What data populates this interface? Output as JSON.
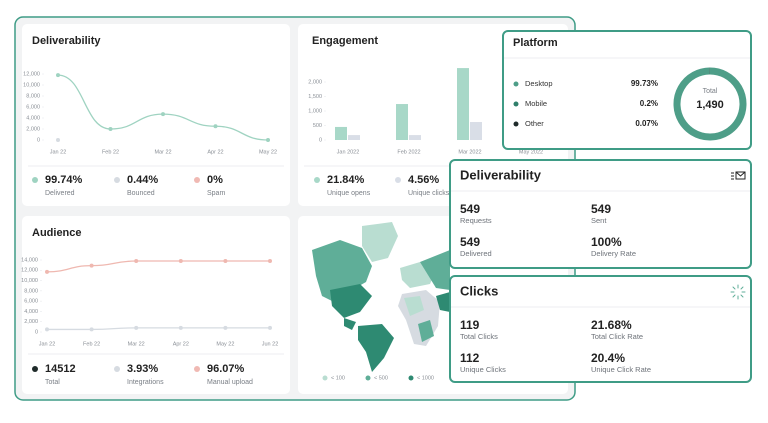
{
  "deliverability_chart": {
    "type": "line",
    "title": "Deliverability",
    "categories": [
      "Jan 22",
      "Feb 22",
      "Mar 22",
      "Apr 22",
      "May 22"
    ],
    "ylim": [
      0,
      12000
    ],
    "yticks": [
      0,
      {
        "value": 2000,
        "label": "2,000"
      },
      {
        "value": 4000,
        "label": "4,000"
      },
      {
        "value": 6000,
        "label": "6,000"
      },
      {
        "value": 8000,
        "label": "8,000"
      },
      {
        "value": 10000,
        "label": "10,000"
      },
      {
        "value": 12000,
        "label": "12,000"
      }
    ],
    "series": [
      {
        "color": "#9fd3c1",
        "values": [
          11800,
          2000,
          4700,
          2500,
          0
        ]
      },
      {
        "color": "#d6dbe1",
        "values": [
          0,
          null,
          null,
          null,
          null
        ]
      }
    ],
    "stats": [
      {
        "value": "99.74%",
        "label": "Delivered",
        "color": "#9fd3c1"
      },
      {
        "value": "0.44%",
        "label": "Bounced",
        "color": "#d6dbe1"
      },
      {
        "value": "0%",
        "label": "Spam",
        "color": "#f0b9b3"
      }
    ]
  },
  "engagement_chart": {
    "type": "bar",
    "title": "Engagement",
    "categories": [
      "Jan 2022",
      "Feb 2022",
      "Mar 2022",
      "May 2022"
    ],
    "ylim": [
      0,
      2500
    ],
    "yticks": [
      0,
      500,
      {
        "value": 1000,
        "label": "1,000"
      },
      {
        "value": 1500,
        "label": "1,500"
      },
      {
        "value": 2000,
        "label": "2,000"
      }
    ],
    "series": [
      {
        "color": "#a8d8c8",
        "values": [
          450,
          1240,
          2480,
          null
        ]
      },
      {
        "color": "#d9dee7",
        "values": [
          170,
          170,
          620,
          null
        ]
      }
    ],
    "stats": [
      {
        "value": "21.84%",
        "label": "Unique opens",
        "color": "#a8d8c8"
      },
      {
        "value": "4.56%",
        "label": "Unique clicks",
        "color": "#d9dee7"
      }
    ]
  },
  "audience_chart": {
    "type": "line",
    "title": "Audience",
    "categories": [
      "Jan 22",
      "Feb 22",
      "Mar 22",
      "Apr 22",
      "May 22",
      "Jun 22"
    ],
    "ylim": [
      0,
      14000
    ],
    "yticks": [
      0,
      {
        "value": 2000,
        "label": "2,000"
      },
      {
        "value": 4000,
        "label": "4,000"
      },
      {
        "value": 6000,
        "label": "6,000"
      },
      {
        "value": 8000,
        "label": "8,000"
      },
      {
        "value": 10000,
        "label": "10,000"
      },
      {
        "value": 12000,
        "label": "12,000"
      },
      {
        "value": 14000,
        "label": "14,000"
      }
    ],
    "series": [
      {
        "color": "#efb8b0",
        "values": [
          11700,
          12900,
          13800,
          13800,
          13800,
          13800
        ]
      },
      {
        "color": "#d6dbe1",
        "values": [
          500,
          500,
          800,
          800,
          800,
          800
        ]
      }
    ],
    "stats": [
      {
        "value": 14512,
        "label": "Total",
        "color": "#1f2b2a"
      },
      {
        "value": "3.93%",
        "label": "Integrations",
        "color": "#d6dbe1"
      },
      {
        "value": "96.07%",
        "label": "Manual upload",
        "color": "#f0b9b3"
      }
    ]
  },
  "map": {
    "legend": [
      {
        "label": "< 100",
        "color": "#b9ddd1"
      },
      {
        "label": "< 500",
        "color": "#5fae98"
      },
      {
        "label": "< 1000",
        "color": "#2e8a72"
      }
    ]
  },
  "platform": {
    "type": "pie",
    "title": "Platform",
    "categories": [
      "Desktop",
      "Mobile",
      "Other"
    ],
    "values": [
      99.73,
      0.2,
      0.07
    ],
    "value_labels": [
      "99.73%",
      "0.2%",
      "0.07%"
    ],
    "colors": [
      "#4e9e88",
      "#2f7f6a",
      "#1f2b2a"
    ],
    "total_label": "Total",
    "total": {
      "value": 1490,
      "label": "1,490"
    }
  },
  "deliverability_summary": {
    "title": "Deliverability",
    "items": [
      {
        "value": 549,
        "label": "Requests"
      },
      {
        "value": 549,
        "label": "Sent"
      },
      {
        "value": 549,
        "label": "Delivered"
      },
      {
        "value": "100%",
        "label": "Delivery Rate"
      }
    ]
  },
  "clicks_summary": {
    "title": "Clicks",
    "items": [
      {
        "value": 119,
        "label": "Total Clicks"
      },
      {
        "value": "21.68%",
        "label": "Total Click Rate"
      },
      {
        "value": 112,
        "label": "Unique Clicks"
      },
      {
        "value": "20.4%",
        "label": "Unique Click Rate"
      }
    ]
  }
}
